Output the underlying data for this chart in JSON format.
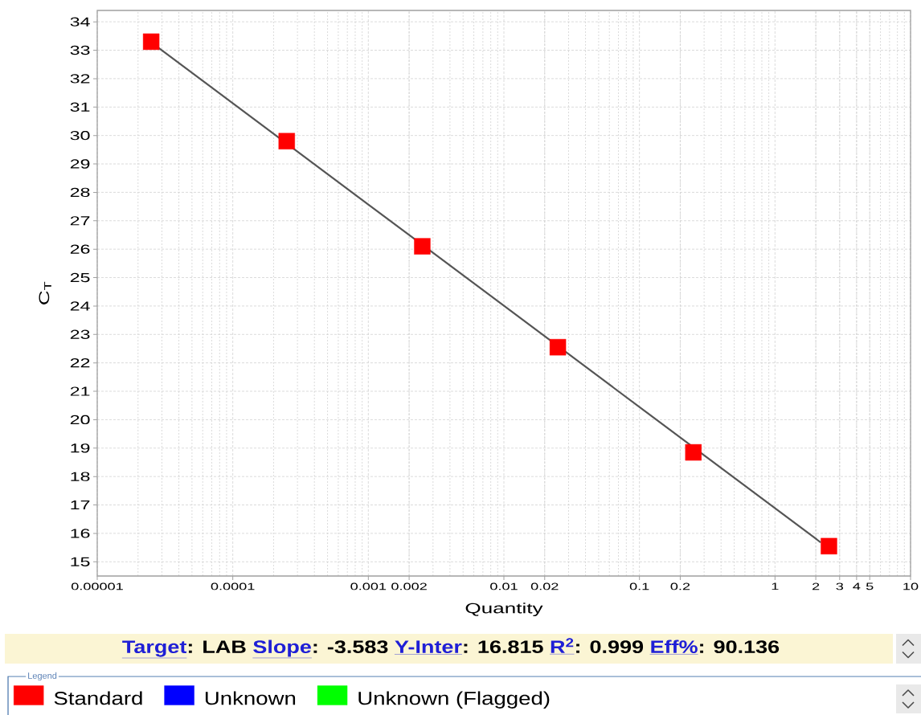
{
  "chart_data": {
    "type": "scatter",
    "xlabel": "Quantity",
    "ylabel": "C$_{T}$",
    "log": "x",
    "xlim": [
      1e-05,
      10
    ],
    "ylim": [
      14.5,
      34.4
    ],
    "xticks": [
      {
        "value": 1e-05,
        "label": "0.00001"
      },
      0.0001,
      0.001,
      0.002,
      0.01,
      0.02,
      0.1,
      0.2,
      1,
      2,
      3,
      4,
      5,
      10
    ],
    "yticks": [
      15,
      16,
      17,
      18,
      19,
      20,
      21,
      22,
      23,
      24,
      25,
      26,
      27,
      28,
      29,
      30,
      31,
      32,
      33,
      34
    ],
    "grid": true,
    "marker": "square",
    "legend": "bottom",
    "legend_title": "Legend",
    "series": [
      {
        "type": "line",
        "marker": "none",
        "color": "#555555",
        "x": [
          2.8e-05,
          2.15
        ],
        "values": [
          33.1,
          15.7
        ]
      },
      {
        "name": "Standard",
        "color": "#ff0000",
        "x": [
          2.5e-05,
          0.00025,
          0.0025,
          0.025,
          0.25,
          2.5
        ],
        "values": [
          33.3,
          29.8,
          26.1,
          22.55,
          18.85,
          15.55
        ]
      },
      {
        "name": "Unknown",
        "color": "#0000ff"
      },
      {
        "name": "Unknown (Flagged)",
        "color": "#00ff00"
      }
    ],
    "annotations": [
      "Target",
      ": LAB",
      "Slope",
      ": -3.583",
      "Y-Inter",
      ": 16.815",
      "R$^{2}$",
      ": 0.999",
      "Eff%",
      ": 90.136"
    ]
  }
}
